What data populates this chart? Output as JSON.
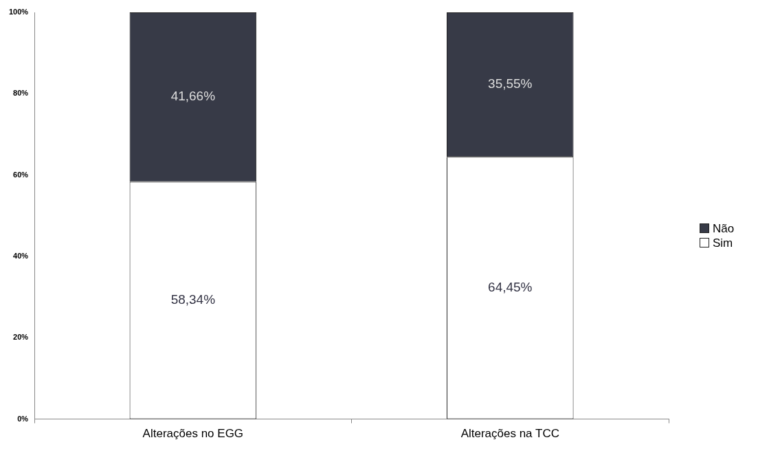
{
  "chart_data": {
    "type": "bar",
    "stacked": true,
    "categories": [
      "Alterações no EGG",
      "Alterações na TCC"
    ],
    "series": [
      {
        "name": "Sim",
        "color": "#ffffff",
        "values": [
          58.34,
          64.45
        ],
        "value_labels": [
          "58,34%",
          "64,45%"
        ]
      },
      {
        "name": "Não",
        "color": "#373a47",
        "values": [
          41.66,
          35.55
        ],
        "value_labels": [
          "41,66%",
          "35,55%"
        ]
      }
    ],
    "ylim": [
      0,
      100
    ],
    "yticks": [
      {
        "value": 0,
        "label": "0%"
      },
      {
        "value": 20,
        "label": "20%"
      },
      {
        "value": 40,
        "label": "40%"
      },
      {
        "value": 60,
        "label": "60%"
      },
      {
        "value": 80,
        "label": "80%"
      },
      {
        "value": 100,
        "label": "100%"
      }
    ],
    "legend": "right"
  }
}
